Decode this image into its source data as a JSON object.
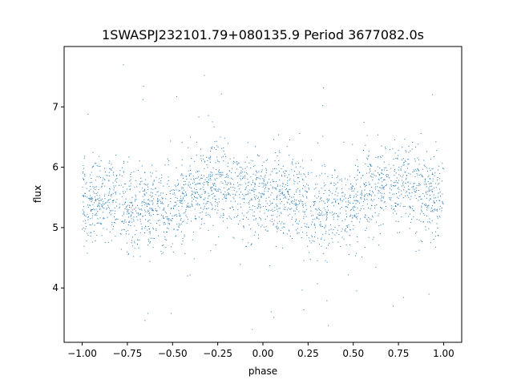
{
  "chart_data": {
    "type": "scatter",
    "title": "1SWASPJ232101.79+080135.9 Period 3677082.0s",
    "xlabel": "phase",
    "ylabel": "flux",
    "xlim": [
      -1.1,
      1.1
    ],
    "ylim": [
      3.1,
      8.0
    ],
    "xticks": [
      -1.0,
      -0.75,
      -0.5,
      -0.25,
      0.0,
      0.25,
      0.5,
      0.75,
      1.0
    ],
    "xtick_labels": [
      "−1.00",
      "−0.75",
      "−0.50",
      "−0.25",
      "0.00",
      "0.25",
      "0.50",
      "0.75",
      "1.00"
    ],
    "yticks": [
      4,
      5,
      6,
      7
    ],
    "ytick_labels": [
      "4",
      "5",
      "6",
      "7"
    ],
    "grid": false,
    "legend": "none",
    "point_color": "#1f77b4",
    "series": [
      {
        "phase_profile": [
          [
            -1.0,
            5.5
          ],
          [
            -0.95,
            5.45
          ],
          [
            -0.9,
            5.4
          ],
          [
            -0.85,
            5.5
          ],
          [
            -0.8,
            5.45
          ],
          [
            -0.75,
            5.3
          ],
          [
            -0.7,
            5.25
          ],
          [
            -0.65,
            5.35
          ],
          [
            -0.6,
            5.4
          ],
          [
            -0.55,
            5.2
          ],
          [
            -0.5,
            5.3
          ],
          [
            -0.45,
            5.45
          ],
          [
            -0.4,
            5.55
          ],
          [
            -0.35,
            5.65
          ],
          [
            -0.3,
            5.7
          ],
          [
            -0.25,
            5.7
          ],
          [
            -0.2,
            5.65
          ],
          [
            -0.15,
            5.6
          ],
          [
            -0.1,
            5.55
          ],
          [
            -0.05,
            5.5
          ],
          [
            0.0,
            5.5
          ],
          [
            0.05,
            5.45
          ],
          [
            0.1,
            5.4
          ],
          [
            0.15,
            5.5
          ],
          [
            0.2,
            5.45
          ],
          [
            0.25,
            5.3
          ],
          [
            0.3,
            5.25
          ],
          [
            0.35,
            5.35
          ],
          [
            0.4,
            5.4
          ],
          [
            0.45,
            5.2
          ],
          [
            0.5,
            5.3
          ],
          [
            0.55,
            5.45
          ],
          [
            0.6,
            5.55
          ],
          [
            0.65,
            5.65
          ],
          [
            0.7,
            5.7
          ],
          [
            0.75,
            5.7
          ],
          [
            0.8,
            5.65
          ],
          [
            0.85,
            5.6
          ],
          [
            0.9,
            5.55
          ],
          [
            0.95,
            5.5
          ],
          [
            1.0,
            5.5
          ]
        ],
        "typical_spread": 0.35,
        "outlier_range": [
          3.3,
          7.8
        ]
      }
    ]
  }
}
